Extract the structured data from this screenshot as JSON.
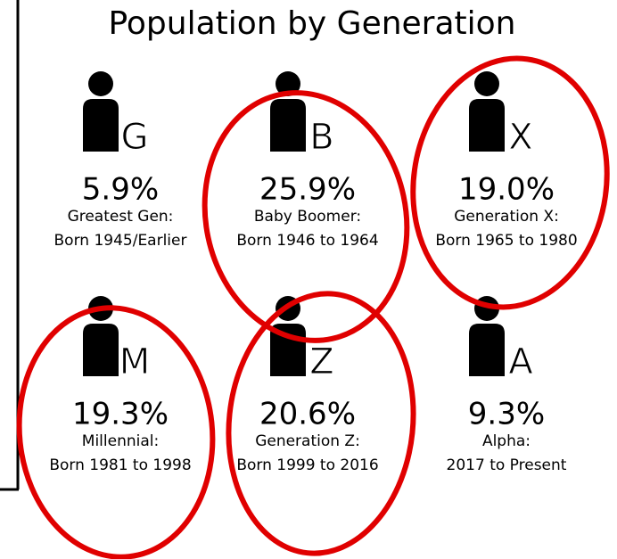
{
  "title": "Population by Generation",
  "items": [
    {
      "letter": "G",
      "percent": "5.9%",
      "lines": [
        "Greatest Gen:",
        "Born 1945/Earlier"
      ]
    },
    {
      "letter": "B",
      "percent": "25.9%",
      "lines": [
        "Baby Boomer:",
        "Born 1946 to 1964"
      ]
    },
    {
      "letter": "X",
      "percent": "19.0%",
      "lines": [
        "Generation X:",
        "Born 1965 to 1980"
      ]
    },
    {
      "letter": "M",
      "percent": "19.3%",
      "lines": [
        "Millennial:",
        "Born 1981 to 1998"
      ]
    },
    {
      "letter": "Z",
      "percent": "20.6%",
      "lines": [
        "Generation Z:",
        "Born 1999 to 2016"
      ]
    },
    {
      "letter": "A",
      "percent": "9.3%",
      "lines": [
        "Alpha:",
        "2017 to Present"
      ]
    }
  ]
}
